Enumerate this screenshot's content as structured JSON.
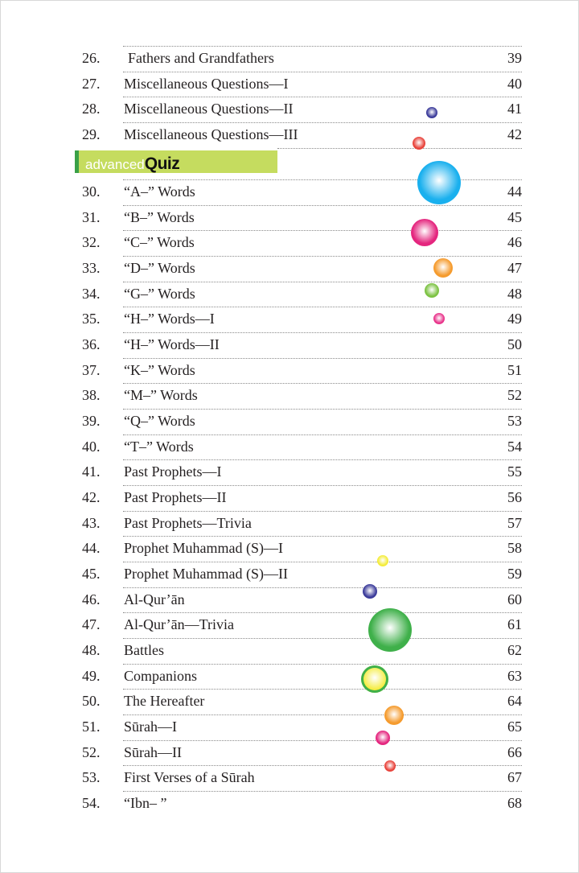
{
  "section_heading": {
    "prefix": "advanced",
    "emphasis": "Quiz"
  },
  "entries_before": [
    {
      "num": "26.",
      "title": "Fathers and Grandfathers",
      "page": "39"
    },
    {
      "num": "27.",
      "title": "Miscellaneous Questions—I",
      "page": "40"
    },
    {
      "num": "28.",
      "title": "Miscellaneous Questions—II",
      "page": "41"
    },
    {
      "num": "29.",
      "title": "Miscellaneous Questions—III",
      "page": "42"
    }
  ],
  "entries_after": [
    {
      "num": "30.",
      "title": "“A–” Words",
      "page": "44"
    },
    {
      "num": "31.",
      "title": "“B–” Words",
      "page": "45"
    },
    {
      "num": "32.",
      "title": "“C–” Words",
      "page": "46"
    },
    {
      "num": "33.",
      "title": "“D–” Words",
      "page": "47"
    },
    {
      "num": "34.",
      "title": "“G–” Words",
      "page": "48"
    },
    {
      "num": "35.",
      "title": "“H–” Words—I",
      "page": "49"
    },
    {
      "num": "36.",
      "title": "“H–” Words—II",
      "page": "50"
    },
    {
      "num": "37.",
      "title": "“K–” Words",
      "page": "51"
    },
    {
      "num": "38.",
      "title": "“M–” Words",
      "page": "52"
    },
    {
      "num": "39.",
      "title": "“Q–” Words",
      "page": "53"
    },
    {
      "num": "40.",
      "title": "“T–” Words",
      "page": "54"
    },
    {
      "num": "41.",
      "title": "Past Prophets—I",
      "page": "55"
    },
    {
      "num": "42.",
      "title": "Past Prophets—II",
      "page": "56"
    },
    {
      "num": "43.",
      "title": "Past Prophets—Trivia",
      "page": "57"
    },
    {
      "num": "44.",
      "title": "Prophet Muhammad (S)—I",
      "page": "58"
    },
    {
      "num": "45.",
      "title": "Prophet Muhammad (S)—II",
      "page": "59"
    },
    {
      "num": "46.",
      "title": "Al-Qur’ān",
      "page": "60"
    },
    {
      "num": "47.",
      "title": "Al-Qur’ān—Trivia",
      "page": "61"
    },
    {
      "num": "48.",
      "title": "Battles",
      "page": "62"
    },
    {
      "num": "49.",
      "title": "Companions",
      "page": "63"
    },
    {
      "num": "50.",
      "title": "The Hereafter",
      "page": "64"
    },
    {
      "num": "51.",
      "title": "Sūrah—I",
      "page": "65"
    },
    {
      "num": "52.",
      "title": "Sūrah—II",
      "page": "66"
    },
    {
      "num": "53.",
      "title": "First Verses of a Sūrah",
      "page": "67"
    },
    {
      "num": "54.",
      "title": "“Ibn– ”",
      "page": "68"
    }
  ],
  "colors": {
    "banner": "#c5dc5f",
    "banner_accent": "#3aa047"
  },
  "bubble_colors": [
    "#3b3b9a",
    "#e8423a",
    "#1ab0ee",
    "#e4267e",
    "#f59b2e",
    "#7cc242",
    "#e8338a",
    "#f4ec3a",
    "#3b3b9a",
    "#3fb04a",
    "#f4ec3a",
    "#f59b2e",
    "#e4267e",
    "#e8423a"
  ]
}
